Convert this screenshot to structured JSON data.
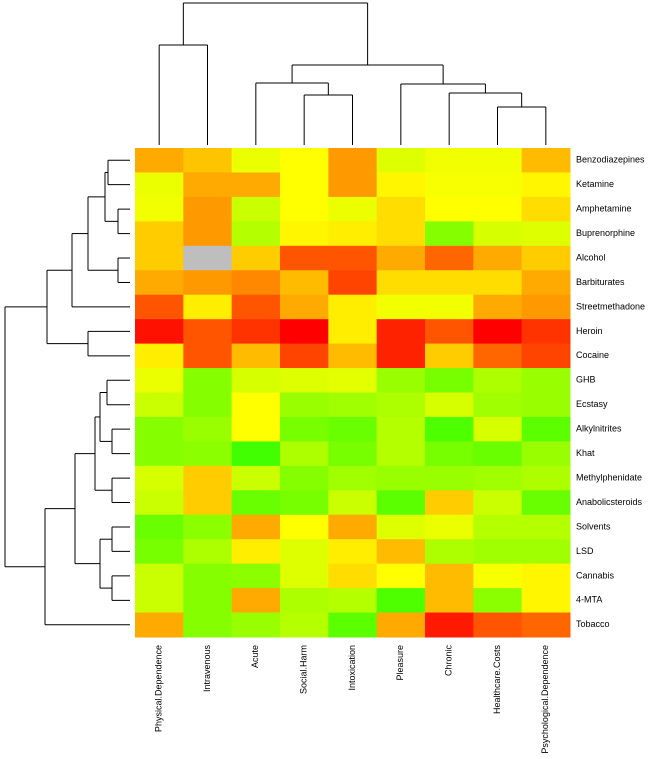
{
  "chart_data": {
    "type": "heatmap",
    "rows": [
      "Benzodiazepines",
      "Ketamine",
      "Amphetamine",
      "Buprenorphine",
      "Alcohol",
      "Barbiturates",
      "Streetmethadone",
      "Heroin",
      "Cocaine",
      "GHB",
      "Ecstasy",
      "Alkylnitrites",
      "Khat",
      "Methylphenidate",
      "Anabolicsteroids",
      "Solvents",
      "LSD",
      "Cannabis",
      "4-MTA",
      "Tobacco"
    ],
    "columns": [
      "Physical.Dependence",
      "Intravenous",
      "Acute",
      "Social.Harm",
      "Intoxication",
      "Pleasure",
      "Chronic",
      "Healthcare.Costs",
      "Psychological.Dependence"
    ],
    "values": [
      [
        2.0,
        1.85,
        1.35,
        1.5,
        2.1,
        1.25,
        1.4,
        1.4,
        1.9
      ],
      [
        1.35,
        2.0,
        2.0,
        1.5,
        2.1,
        1.55,
        1.45,
        1.45,
        1.55
      ],
      [
        1.4,
        2.1,
        1.1,
        1.5,
        1.35,
        1.7,
        1.5,
        1.5,
        1.7
      ],
      [
        1.8,
        2.1,
        0.95,
        1.55,
        1.6,
        1.7,
        0.6,
        1.2,
        1.25
      ],
      [
        1.8,
        null,
        1.8,
        2.5,
        2.5,
        2.0,
        2.4,
        2.0,
        1.8
      ],
      [
        2.0,
        2.1,
        2.2,
        1.9,
        2.6,
        1.7,
        1.7,
        1.7,
        2.0
      ],
      [
        2.5,
        1.6,
        2.5,
        2.0,
        1.6,
        1.4,
        1.4,
        2.0,
        2.1
      ],
      [
        2.9,
        2.5,
        2.7,
        3.0,
        1.6,
        2.8,
        2.5,
        3.0,
        2.7
      ],
      [
        1.6,
        2.5,
        1.9,
        2.6,
        1.9,
        2.8,
        1.8,
        2.4,
        2.6
      ],
      [
        1.35,
        0.6,
        1.2,
        1.25,
        1.3,
        0.75,
        0.5,
        0.9,
        0.75
      ],
      [
        1.1,
        0.6,
        1.5,
        0.75,
        0.8,
        0.9,
        1.2,
        0.8,
        0.75
      ],
      [
        0.6,
        0.75,
        1.5,
        0.5,
        0.4,
        0.95,
        0.2,
        1.2,
        0.3
      ],
      [
        0.6,
        0.65,
        0.1,
        0.9,
        0.5,
        0.95,
        0.5,
        0.4,
        0.75
      ],
      [
        1.2,
        1.8,
        1.1,
        0.6,
        0.8,
        0.75,
        0.75,
        0.8,
        0.9
      ],
      [
        1.1,
        1.8,
        0.4,
        0.5,
        1.1,
        0.3,
        1.8,
        1.1,
        0.4
      ],
      [
        0.4,
        0.65,
        2.0,
        1.5,
        2.0,
        1.25,
        1.35,
        0.95,
        0.95
      ],
      [
        0.5,
        0.9,
        1.6,
        1.25,
        1.6,
        1.9,
        0.9,
        0.8,
        0.8
      ],
      [
        1.1,
        0.6,
        0.65,
        1.25,
        1.7,
        1.5,
        1.9,
        1.45,
        1.55
      ],
      [
        1.1,
        0.6,
        2.0,
        0.9,
        0.95,
        0.2,
        1.9,
        0.65,
        1.55
      ],
      [
        2.0,
        0.6,
        0.75,
        0.95,
        0.3,
        2.0,
        2.85,
        2.5,
        2.4
      ]
    ],
    "zlim": [
      0,
      3
    ],
    "colors": [
      "#33ff00",
      "#ffff00",
      "#ff0000"
    ],
    "na_color": "#bebebe"
  }
}
